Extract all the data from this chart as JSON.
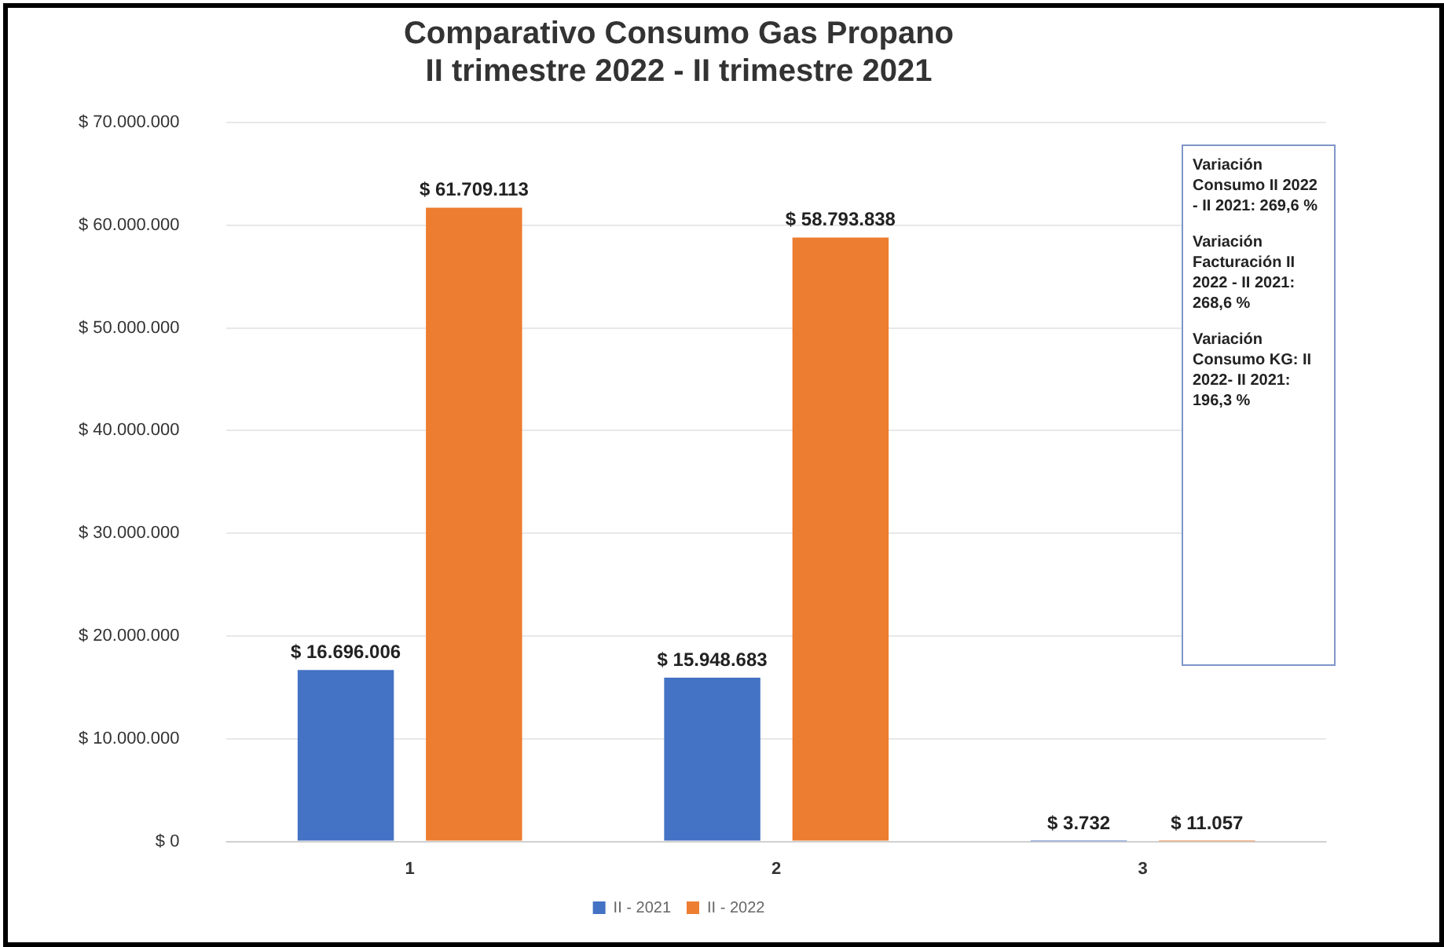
{
  "chart_data": {
    "type": "bar",
    "title": "Comparativo Consumo Gas Propano\nII trimestre 2022 - II trimestre 2021",
    "categories": [
      "1",
      "2",
      "3"
    ],
    "series": [
      {
        "name": "II - 2021",
        "color": "#4472c4",
        "values": [
          16696006,
          15948683,
          3732
        ],
        "value_labels": [
          "$ 16.696.006",
          "$ 15.948.683",
          "$ 3.732"
        ]
      },
      {
        "name": "II - 2022",
        "color": "#ed7d31",
        "values": [
          61709113,
          58793838,
          11057
        ],
        "value_labels": [
          "$ 61.709.113",
          "$ 58.793.838",
          "$ 11.057"
        ]
      }
    ],
    "ylim": [
      0,
      70000000
    ],
    "yticks": [
      {
        "value": 0,
        "label": "$ 0"
      },
      {
        "value": 10000000,
        "label": "$ 10.000.000"
      },
      {
        "value": 20000000,
        "label": "$ 20.000.000"
      },
      {
        "value": 30000000,
        "label": "$ 30.000.000"
      },
      {
        "value": 40000000,
        "label": "$ 40.000.000"
      },
      {
        "value": 50000000,
        "label": "$ 50.000.000"
      },
      {
        "value": 60000000,
        "label": "$ 60.000.000"
      },
      {
        "value": 70000000,
        "label": "$ 70.000.000"
      }
    ],
    "grid": "y",
    "legend": "bottom",
    "annotations": [
      "Variación Consumo II 2022 - II 2021: 269,6 %",
      "Variación Facturación II 2022 - II 2021: 268,6 %",
      "Variación Consumo KG: II 2022- II 2021: 196,3 %"
    ]
  }
}
